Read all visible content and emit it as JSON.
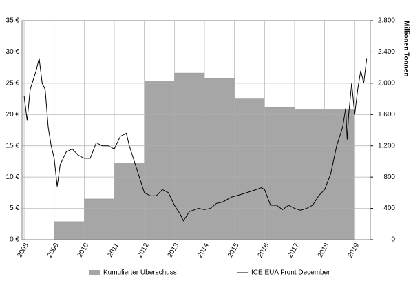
{
  "chart_data": {
    "type": "combo",
    "y2_label": "Millionen Tonnen",
    "xlim": [
      2007.93,
      2019.52
    ],
    "xticks": [
      2008,
      2009,
      2010,
      2011,
      2012,
      2013,
      2014,
      2015,
      2016,
      2017,
      2018,
      2019
    ],
    "ylim": [
      0,
      35
    ],
    "yticks": [
      {
        "value": 0,
        "label": "0 €"
      },
      {
        "value": 5,
        "label": "5 €"
      },
      {
        "value": 10,
        "label": "10 €"
      },
      {
        "value": 15,
        "label": "15 €"
      },
      {
        "value": 20,
        "label": "20 €"
      },
      {
        "value": 25,
        "label": "25 €"
      },
      {
        "value": 30,
        "label": "30 €"
      },
      {
        "value": 35,
        "label": "35 €"
      }
    ],
    "y2lim": [
      0,
      2800
    ],
    "y2ticks": [
      0,
      400,
      800,
      {
        "value": 1200,
        "label": "1.200"
      },
      {
        "value": 1600,
        "label": "1.600"
      },
      {
        "value": 2000,
        "label": "2.000"
      },
      {
        "value": 2400,
        "label": "2.400"
      },
      {
        "value": 2800,
        "label": "2.800"
      }
    ],
    "grid": true,
    "legend": "bottom",
    "series": [
      {
        "name": "Kumulierter Überschuss",
        "type": "bar",
        "axis": "y2",
        "color": "#a6a6a6",
        "x": [
          2009,
          2010,
          2011,
          2012,
          2013,
          2014,
          2015,
          2016,
          2017,
          2018
        ],
        "values": [
          230,
          520,
          980,
          2030,
          2130,
          2060,
          1800,
          1690,
          1660,
          1660
        ]
      },
      {
        "name": "ICE EUA Front December",
        "type": "line",
        "color": "#000000",
        "x": [
          2008.0,
          2008.1,
          2008.2,
          2008.4,
          2008.5,
          2008.6,
          2008.7,
          2008.8,
          2008.9,
          2009.0,
          2009.1,
          2009.2,
          2009.4,
          2009.6,
          2009.8,
          2010.0,
          2010.2,
          2010.4,
          2010.6,
          2010.8,
          2011.0,
          2011.2,
          2011.4,
          2011.5,
          2011.7,
          2011.9,
          2012.0,
          2012.2,
          2012.4,
          2012.6,
          2012.8,
          2013.0,
          2013.2,
          2013.3,
          2013.5,
          2013.8,
          2014.0,
          2014.2,
          2014.4,
          2014.6,
          2014.9,
          2015.2,
          2015.6,
          2015.9,
          2016.0,
          2016.2,
          2016.4,
          2016.6,
          2016.8,
          2017.0,
          2017.2,
          2017.4,
          2017.6,
          2017.8,
          2018.0,
          2018.2,
          2018.4,
          2018.6,
          2018.7,
          2018.75,
          2018.8,
          2018.9,
          2019.0,
          2019.1,
          2019.2,
          2019.3,
          2019.4
        ],
        "values": [
          23,
          19,
          24,
          27,
          29,
          25,
          24,
          18,
          15,
          13,
          8.5,
          12,
          14,
          14.5,
          13.5,
          13,
          13,
          15.5,
          15,
          15,
          14.5,
          16.5,
          17,
          15,
          12,
          9,
          7.5,
          7,
          7,
          8,
          7.5,
          5.5,
          4,
          3,
          4.5,
          5,
          4.8,
          5,
          5.8,
          6,
          6.8,
          7.2,
          7.8,
          8.3,
          8,
          5.5,
          5.5,
          4.8,
          5.5,
          5,
          4.7,
          5,
          5.5,
          7,
          8,
          10.5,
          15,
          18,
          21,
          16,
          20,
          25,
          20,
          24,
          27,
          25,
          29
        ]
      }
    ]
  }
}
